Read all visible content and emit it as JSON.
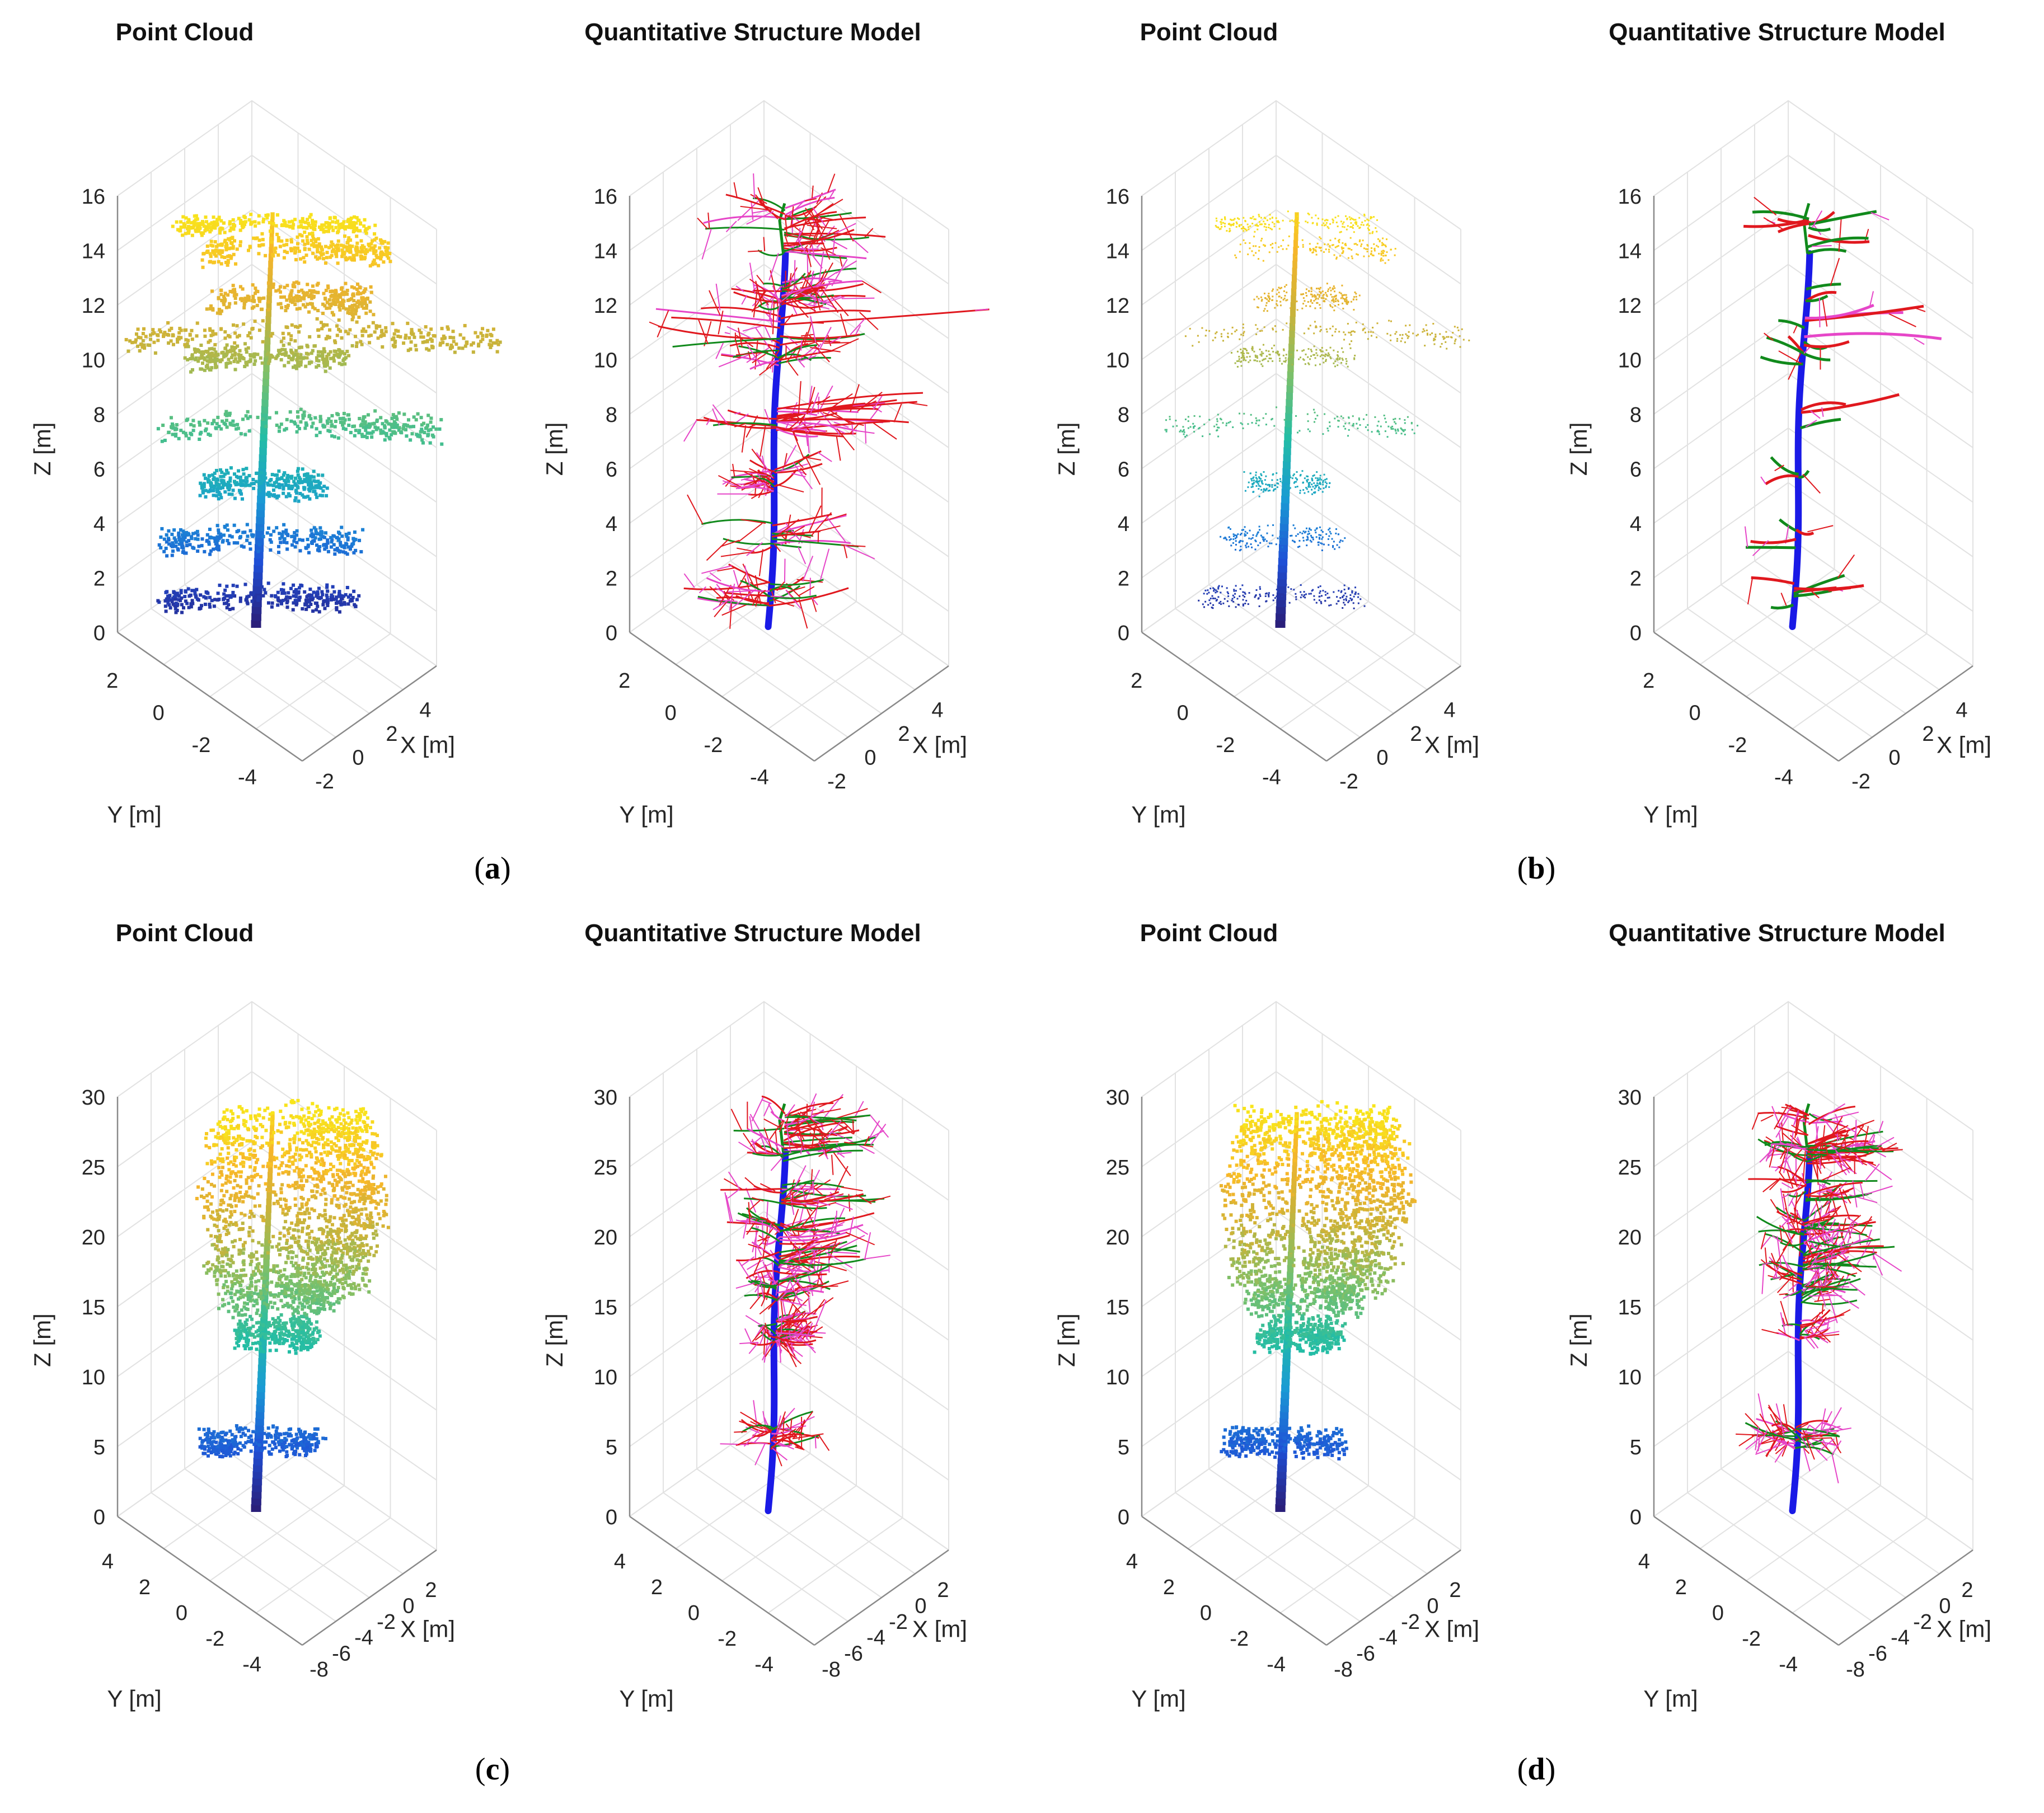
{
  "figure": {
    "panels": [
      {
        "id": "a",
        "caption": "a",
        "plots": [
          {
            "kind": "point_cloud",
            "title": "Point Cloud"
          },
          {
            "kind": "qsm",
            "title": "Quantitative Structure Model"
          }
        ],
        "axes": {
          "zlabel": "Z [m]",
          "ylabel": "Y [m]",
          "xlabel": "X [m]",
          "z_ticks": [
            "0",
            "2",
            "4",
            "6",
            "8",
            "10",
            "12",
            "14",
            "16"
          ],
          "y_ticks": [
            "2",
            "0",
            "-2",
            "-4"
          ],
          "x_ticks": [
            "-2",
            "0",
            "2",
            "4"
          ]
        }
      },
      {
        "id": "b",
        "caption": "b",
        "plots": [
          {
            "kind": "point_cloud",
            "title": "Point Cloud"
          },
          {
            "kind": "qsm",
            "title": "Quantitative Structure Model"
          }
        ],
        "axes": {
          "zlabel": "Z [m]",
          "ylabel": "Y [m]",
          "xlabel": "X [m]",
          "z_ticks": [
            "0",
            "2",
            "4",
            "6",
            "8",
            "10",
            "12",
            "14",
            "16"
          ],
          "y_ticks": [
            "2",
            "0",
            "-2",
            "-4"
          ],
          "x_ticks": [
            "-2",
            "0",
            "2",
            "4"
          ]
        }
      },
      {
        "id": "c",
        "caption": "c",
        "plots": [
          {
            "kind": "point_cloud",
            "title": "Point Cloud"
          },
          {
            "kind": "qsm",
            "title": "Quantitative Structure Model"
          }
        ],
        "axes": {
          "zlabel": "Z [m]",
          "ylabel": "Y [m]",
          "xlabel": "X [m]",
          "z_ticks": [
            "0",
            "5",
            "10",
            "15",
            "20",
            "25",
            "30"
          ],
          "y_ticks": [
            "4",
            "2",
            "0",
            "-2",
            "-4"
          ],
          "x_ticks": [
            "-8",
            "-6",
            "-4",
            "-2",
            "0",
            "2"
          ]
        }
      },
      {
        "id": "d",
        "caption": "d",
        "plots": [
          {
            "kind": "point_cloud",
            "title": "Point Cloud"
          },
          {
            "kind": "qsm",
            "title": "Quantitative Structure Model"
          }
        ],
        "axes": {
          "zlabel": "Z [m]",
          "ylabel": "Y [m]",
          "xlabel": "X [m]",
          "z_ticks": [
            "0",
            "5",
            "10",
            "15",
            "20",
            "25",
            "30"
          ],
          "y_ticks": [
            "4",
            "2",
            "0",
            "-2",
            "-4"
          ],
          "x_ticks": [
            "-8",
            "-6",
            "-4",
            "-2",
            "0",
            "2"
          ]
        }
      }
    ],
    "colors": {
      "colormap": [
        "#2a1f7a",
        "#1f4fd6",
        "#1a9ad4",
        "#23bda5",
        "#7cc06a",
        "#c9b33a",
        "#f7b52a",
        "#f8e51c"
      ],
      "stem": "#1a1ae6",
      "branch_order_1": "#118a1c",
      "branch_order_2": "#e0181e",
      "branch_order_3": "#e646c8",
      "grid": "#e2e2e2",
      "axis": "#8a8a8a"
    }
  }
}
